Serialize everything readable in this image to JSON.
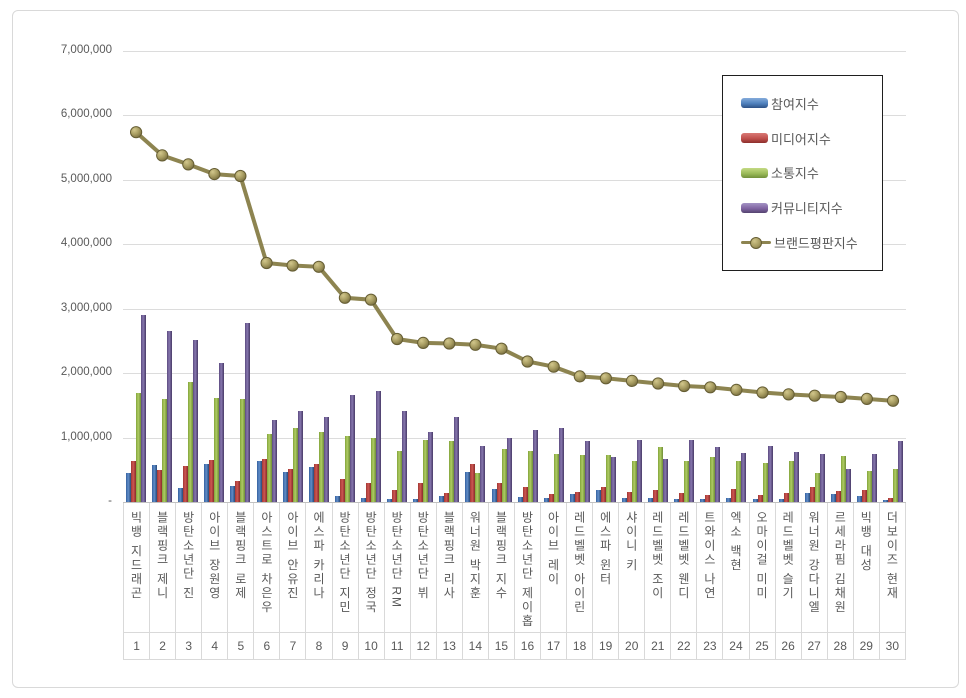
{
  "chart_data": {
    "type": "bar",
    "subtype": "grouped-bars-with-line-overlay",
    "title": "",
    "xlabel": "",
    "ylabel": "",
    "grid": true,
    "legend_position": "top-right",
    "y_axis": {
      "min": 0,
      "max": 7000000,
      "tick_step": 1000000,
      "tick_labels": [
        "-",
        "1,000,000",
        "2,000,000",
        "3,000,000",
        "4,000,000",
        "5,000,000",
        "6,000,000",
        "7,000,000"
      ]
    },
    "ranks": [
      1,
      2,
      3,
      4,
      5,
      6,
      7,
      8,
      9,
      10,
      11,
      12,
      13,
      14,
      15,
      16,
      17,
      18,
      19,
      20,
      21,
      22,
      23,
      24,
      25,
      26,
      27,
      28,
      29,
      30
    ],
    "categories": [
      "빅뱅 지드래곤",
      "블랙핑크 제니",
      "방탄소년단 진",
      "아이브 장원영",
      "블랙핑크 로제",
      "아스트로 차은우",
      "아이브 안유진",
      "에스파 카리나",
      "방탄소년단 지민",
      "방탄소년단 정국",
      "방탄소년단 RM",
      "방탄소년단 뷔",
      "블랙핑크 리사",
      "워너원 박지훈",
      "블랙핑크 지수",
      "방탄소년단 제이홉",
      "아이브 레이",
      "레드벨벳 아이린",
      "에스파 윈터",
      "샤이니 키",
      "레드벨벳 조이",
      "레드벨벳 웬디",
      "트와이스 나연",
      "엑소 백현",
      "오마이걸 미미",
      "레드벨벳 슬기",
      "워너원 강다니엘",
      "르세라핌 김채원",
      "빅뱅 대성",
      "더보이즈 현재"
    ],
    "series": [
      {
        "name": "참여지수",
        "type": "bar",
        "color": "#4F81BD",
        "values": [
          450000,
          570000,
          220000,
          590000,
          250000,
          630000,
          470000,
          550000,
          90000,
          60000,
          40000,
          50000,
          100000,
          460000,
          210000,
          80000,
          70000,
          130000,
          190000,
          60000,
          60000,
          50000,
          50000,
          70000,
          50000,
          40000,
          140000,
          130000,
          90000,
          30000
        ]
      },
      {
        "name": "미디어지수",
        "type": "bar",
        "color": "#C0504D",
        "values": [
          630000,
          500000,
          560000,
          650000,
          330000,
          670000,
          520000,
          590000,
          350000,
          290000,
          190000,
          290000,
          140000,
          590000,
          300000,
          240000,
          130000,
          160000,
          240000,
          160000,
          180000,
          140000,
          110000,
          210000,
          110000,
          140000,
          240000,
          170000,
          180000,
          60000
        ]
      },
      {
        "name": "소통지수",
        "type": "bar",
        "color": "#9BBB59",
        "values": [
          1700000,
          1600000,
          1870000,
          1620000,
          1600000,
          1050000,
          1150000,
          1090000,
          1030000,
          1000000,
          800000,
          970000,
          950000,
          450000,
          820000,
          800000,
          750000,
          730000,
          730000,
          640000,
          860000,
          630000,
          700000,
          630000,
          600000,
          640000,
          450000,
          710000,
          480000,
          520000
        ]
      },
      {
        "name": "커뮤니티지수",
        "type": "bar",
        "color": "#8064A2",
        "values": [
          2910000,
          2650000,
          2510000,
          2160000,
          2780000,
          1270000,
          1420000,
          1320000,
          1660000,
          1720000,
          1410000,
          1090000,
          1320000,
          870000,
          1000000,
          1120000,
          1150000,
          940000,
          700000,
          960000,
          670000,
          960000,
          860000,
          760000,
          870000,
          780000,
          750000,
          510000,
          750000,
          940000
        ]
      },
      {
        "name": "브랜드평판지수",
        "type": "line",
        "color": "#8D8450",
        "marker_color": "#A79C61",
        "values": [
          5740000,
          5380000,
          5240000,
          5090000,
          5060000,
          3710000,
          3670000,
          3650000,
          3170000,
          3140000,
          2530000,
          2470000,
          2460000,
          2440000,
          2380000,
          2180000,
          2100000,
          1950000,
          1920000,
          1880000,
          1840000,
          1800000,
          1780000,
          1740000,
          1700000,
          1670000,
          1650000,
          1630000,
          1600000,
          1570000
        ]
      }
    ]
  }
}
